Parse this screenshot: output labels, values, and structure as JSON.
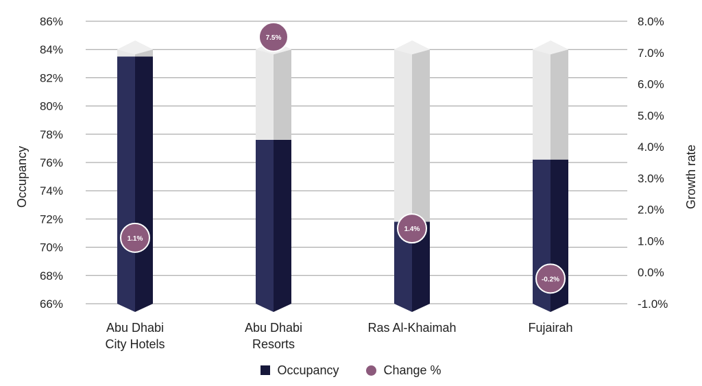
{
  "chart_data": {
    "type": "bar",
    "categories": [
      [
        "Abu Dhabi",
        "City Hotels"
      ],
      [
        "Abu Dhabi",
        "Resorts"
      ],
      [
        "Ras Al-Khaimah"
      ],
      [
        "Fujairah"
      ]
    ],
    "series": [
      {
        "name": "Occupancy",
        "axis": "left",
        "values": [
          83.5,
          77.6,
          71.8,
          76.2
        ]
      },
      {
        "name": "Change %",
        "axis": "right",
        "values": [
          1.1,
          7.5,
          1.4,
          -0.2
        ],
        "labels": [
          "1.1%",
          "7.5%",
          "1.4%",
          "-0.2%"
        ]
      }
    ],
    "y_left": {
      "label": "Occupancy",
      "ylim": [
        66,
        86
      ],
      "ticks": [
        66,
        68,
        70,
        72,
        74,
        76,
        78,
        80,
        82,
        84,
        86
      ],
      "tick_labels": [
        "66%",
        "68%",
        "70%",
        "72%",
        "74%",
        "76%",
        "78%",
        "80%",
        "82%",
        "84%",
        "86%"
      ]
    },
    "y_right": {
      "label": "Growth rate",
      "ylim": [
        -1,
        8
      ],
      "ticks": [
        -1,
        0,
        1,
        2,
        3,
        4,
        5,
        6,
        7,
        8
      ],
      "tick_labels": [
        "-1.0%",
        "0.0%",
        "1.0%",
        "2.0%",
        "3.0%",
        "4.0%",
        "5.0%",
        "6.0%",
        "7.0%",
        "8.0%"
      ]
    },
    "grid": true,
    "legend_position": "bottom-center"
  },
  "legend": {
    "occupancy_label": "Occupancy",
    "change_label": "Change %"
  },
  "colors": {
    "bar_dark_left": "#2c2f5b",
    "bar_dark_right": "#16173a",
    "bar_light_left": "#e8e8e8",
    "bar_light_right": "#c9c9c9",
    "bubble": "#8c5a7c",
    "grid": "#999999"
  }
}
